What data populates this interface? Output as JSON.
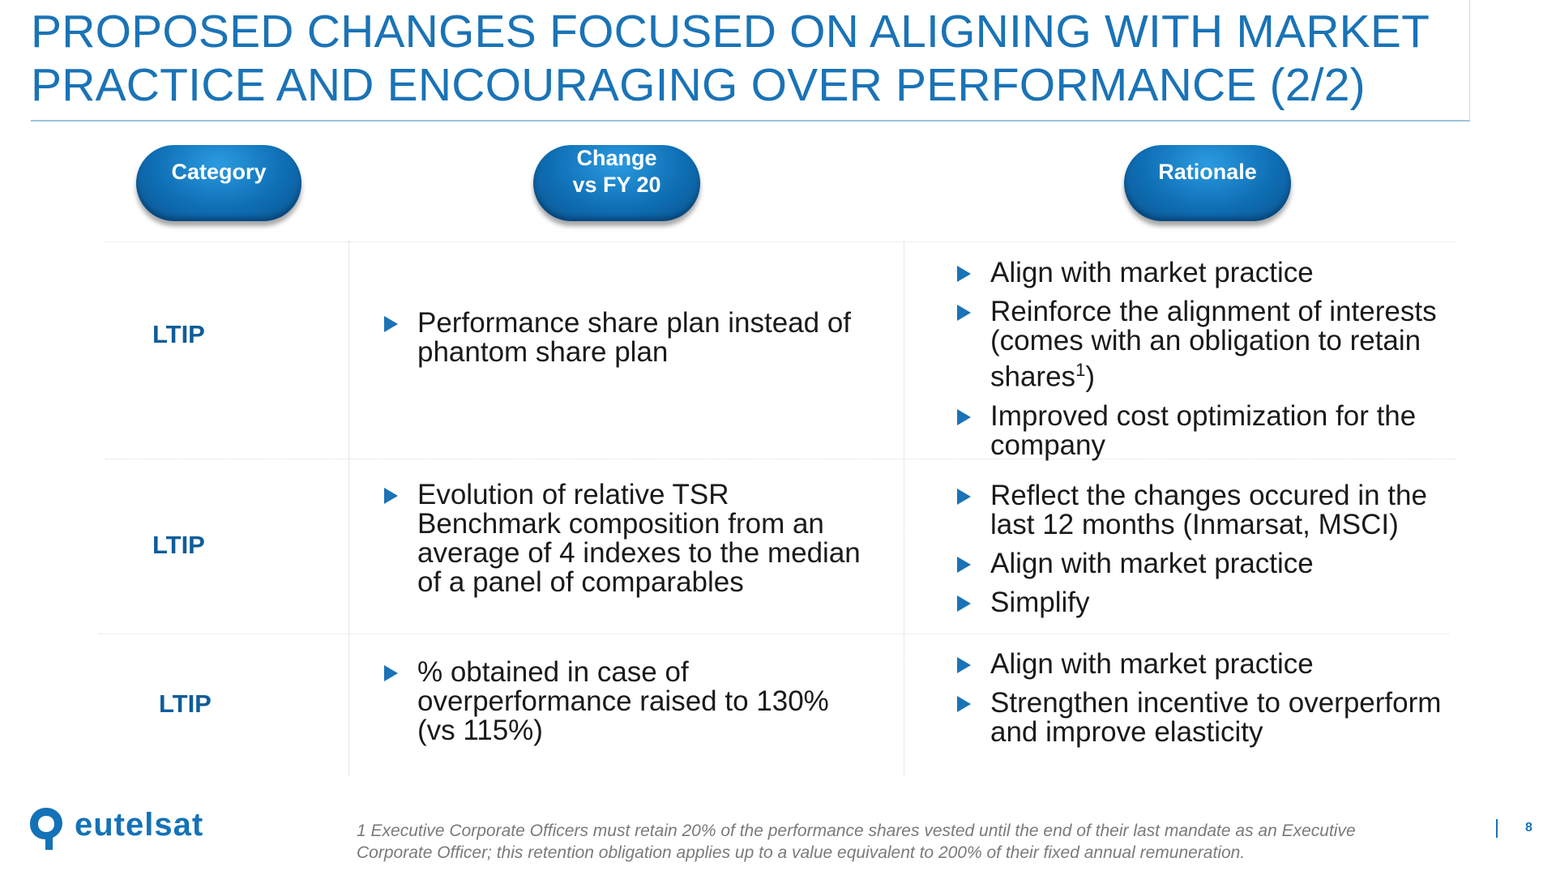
{
  "title": "PROPOSED CHANGES FOCUSED ON ALIGNING WITH MARKET PRACTICE AND ENCOURAGING OVER PERFORMANCE (2/2)",
  "headers": {
    "category": "Category",
    "change": "Change vs FY 20",
    "rationale": "Rationale"
  },
  "rows": [
    {
      "category": "LTIP",
      "change": [
        "Performance share plan instead of phantom share plan"
      ],
      "rationale": [
        {
          "text": "Align with market practice"
        },
        {
          "text": "Reinforce the alignment of interests (comes with an obligation to retain shares",
          "sup": "1",
          "tail": ")"
        },
        {
          "text": "Improved cost optimization for the company"
        }
      ]
    },
    {
      "category": "LTIP",
      "change": [
        "Evolution of relative TSR Benchmark composition from an average of 4 indexes to the median of a panel of comparables"
      ],
      "rationale": [
        {
          "text": "Reflect the changes occured in the last 12 months (Inmarsat, MSCI)"
        },
        {
          "text": "Align with market practice"
        },
        {
          "text": "Simplify"
        }
      ]
    },
    {
      "category": "LTIP",
      "change": [
        "% obtained in case of overperformance raised to 130% (vs 115%)"
      ],
      "rationale": [
        {
          "text": "Align with market practice"
        },
        {
          "text": "Strengthen incentive to overperform and improve elasticity"
        }
      ]
    }
  ],
  "footnote": "1 Executive Corporate Officers must retain 20% of the performance shares vested  until the end of their last mandate as an Executive Corporate Officer; this retention obligation applies up to a value equivalent to 200% of their fixed annual remuneration.",
  "logo_text": "eutelsat",
  "page_number": "8",
  "colors": {
    "accent": "#1a73b6",
    "category_text": "#0e5d99"
  }
}
